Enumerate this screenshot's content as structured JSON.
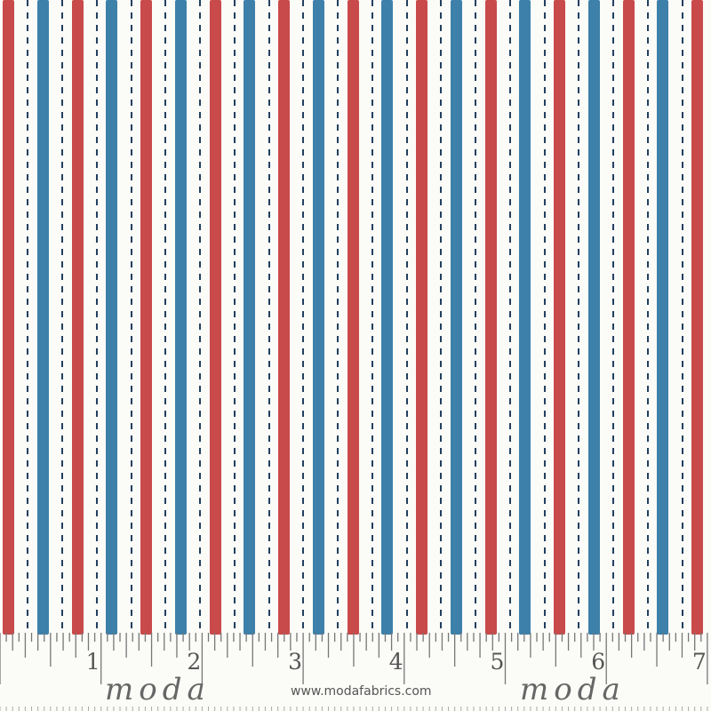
{
  "colors": {
    "background": "#fbfbf8",
    "red": "#c94a4a",
    "blue": "#3d80a9",
    "stitch": "#23405f",
    "ruler": "#777777"
  },
  "ruler": {
    "numbers": [
      "1",
      "2",
      "3",
      "4",
      "5",
      "6",
      "7"
    ]
  },
  "branding": {
    "logo_left": "moda",
    "logo_right": "moda",
    "url": "www.modafabrics.com"
  }
}
